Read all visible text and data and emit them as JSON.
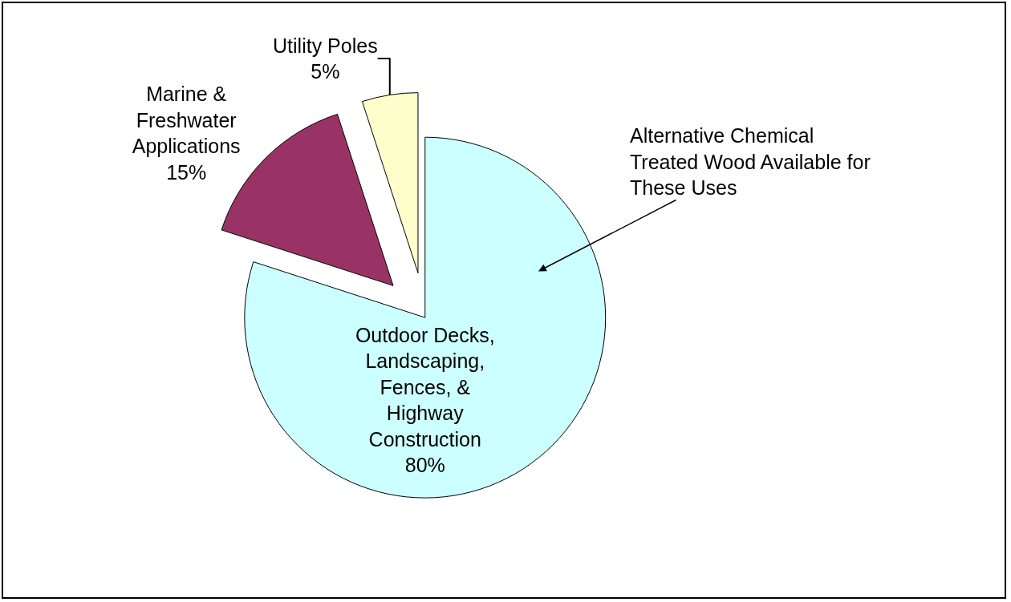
{
  "chart_data": {
    "type": "pie",
    "categories": [
      "Outdoor Decks, Landscaping, Fences, & Highway Construction",
      "Marine & Freshwater Applications",
      "Utility Poles"
    ],
    "values": [
      80,
      15,
      5
    ],
    "value_labels": [
      "80%",
      "15%",
      "5%"
    ],
    "colors": [
      "#ccffff",
      "#993366",
      "#ffffcc"
    ],
    "annotations": [
      {
        "text": "Alternative Chemical Treated Wood Available for These Uses"
      }
    ],
    "legend": false
  }
}
